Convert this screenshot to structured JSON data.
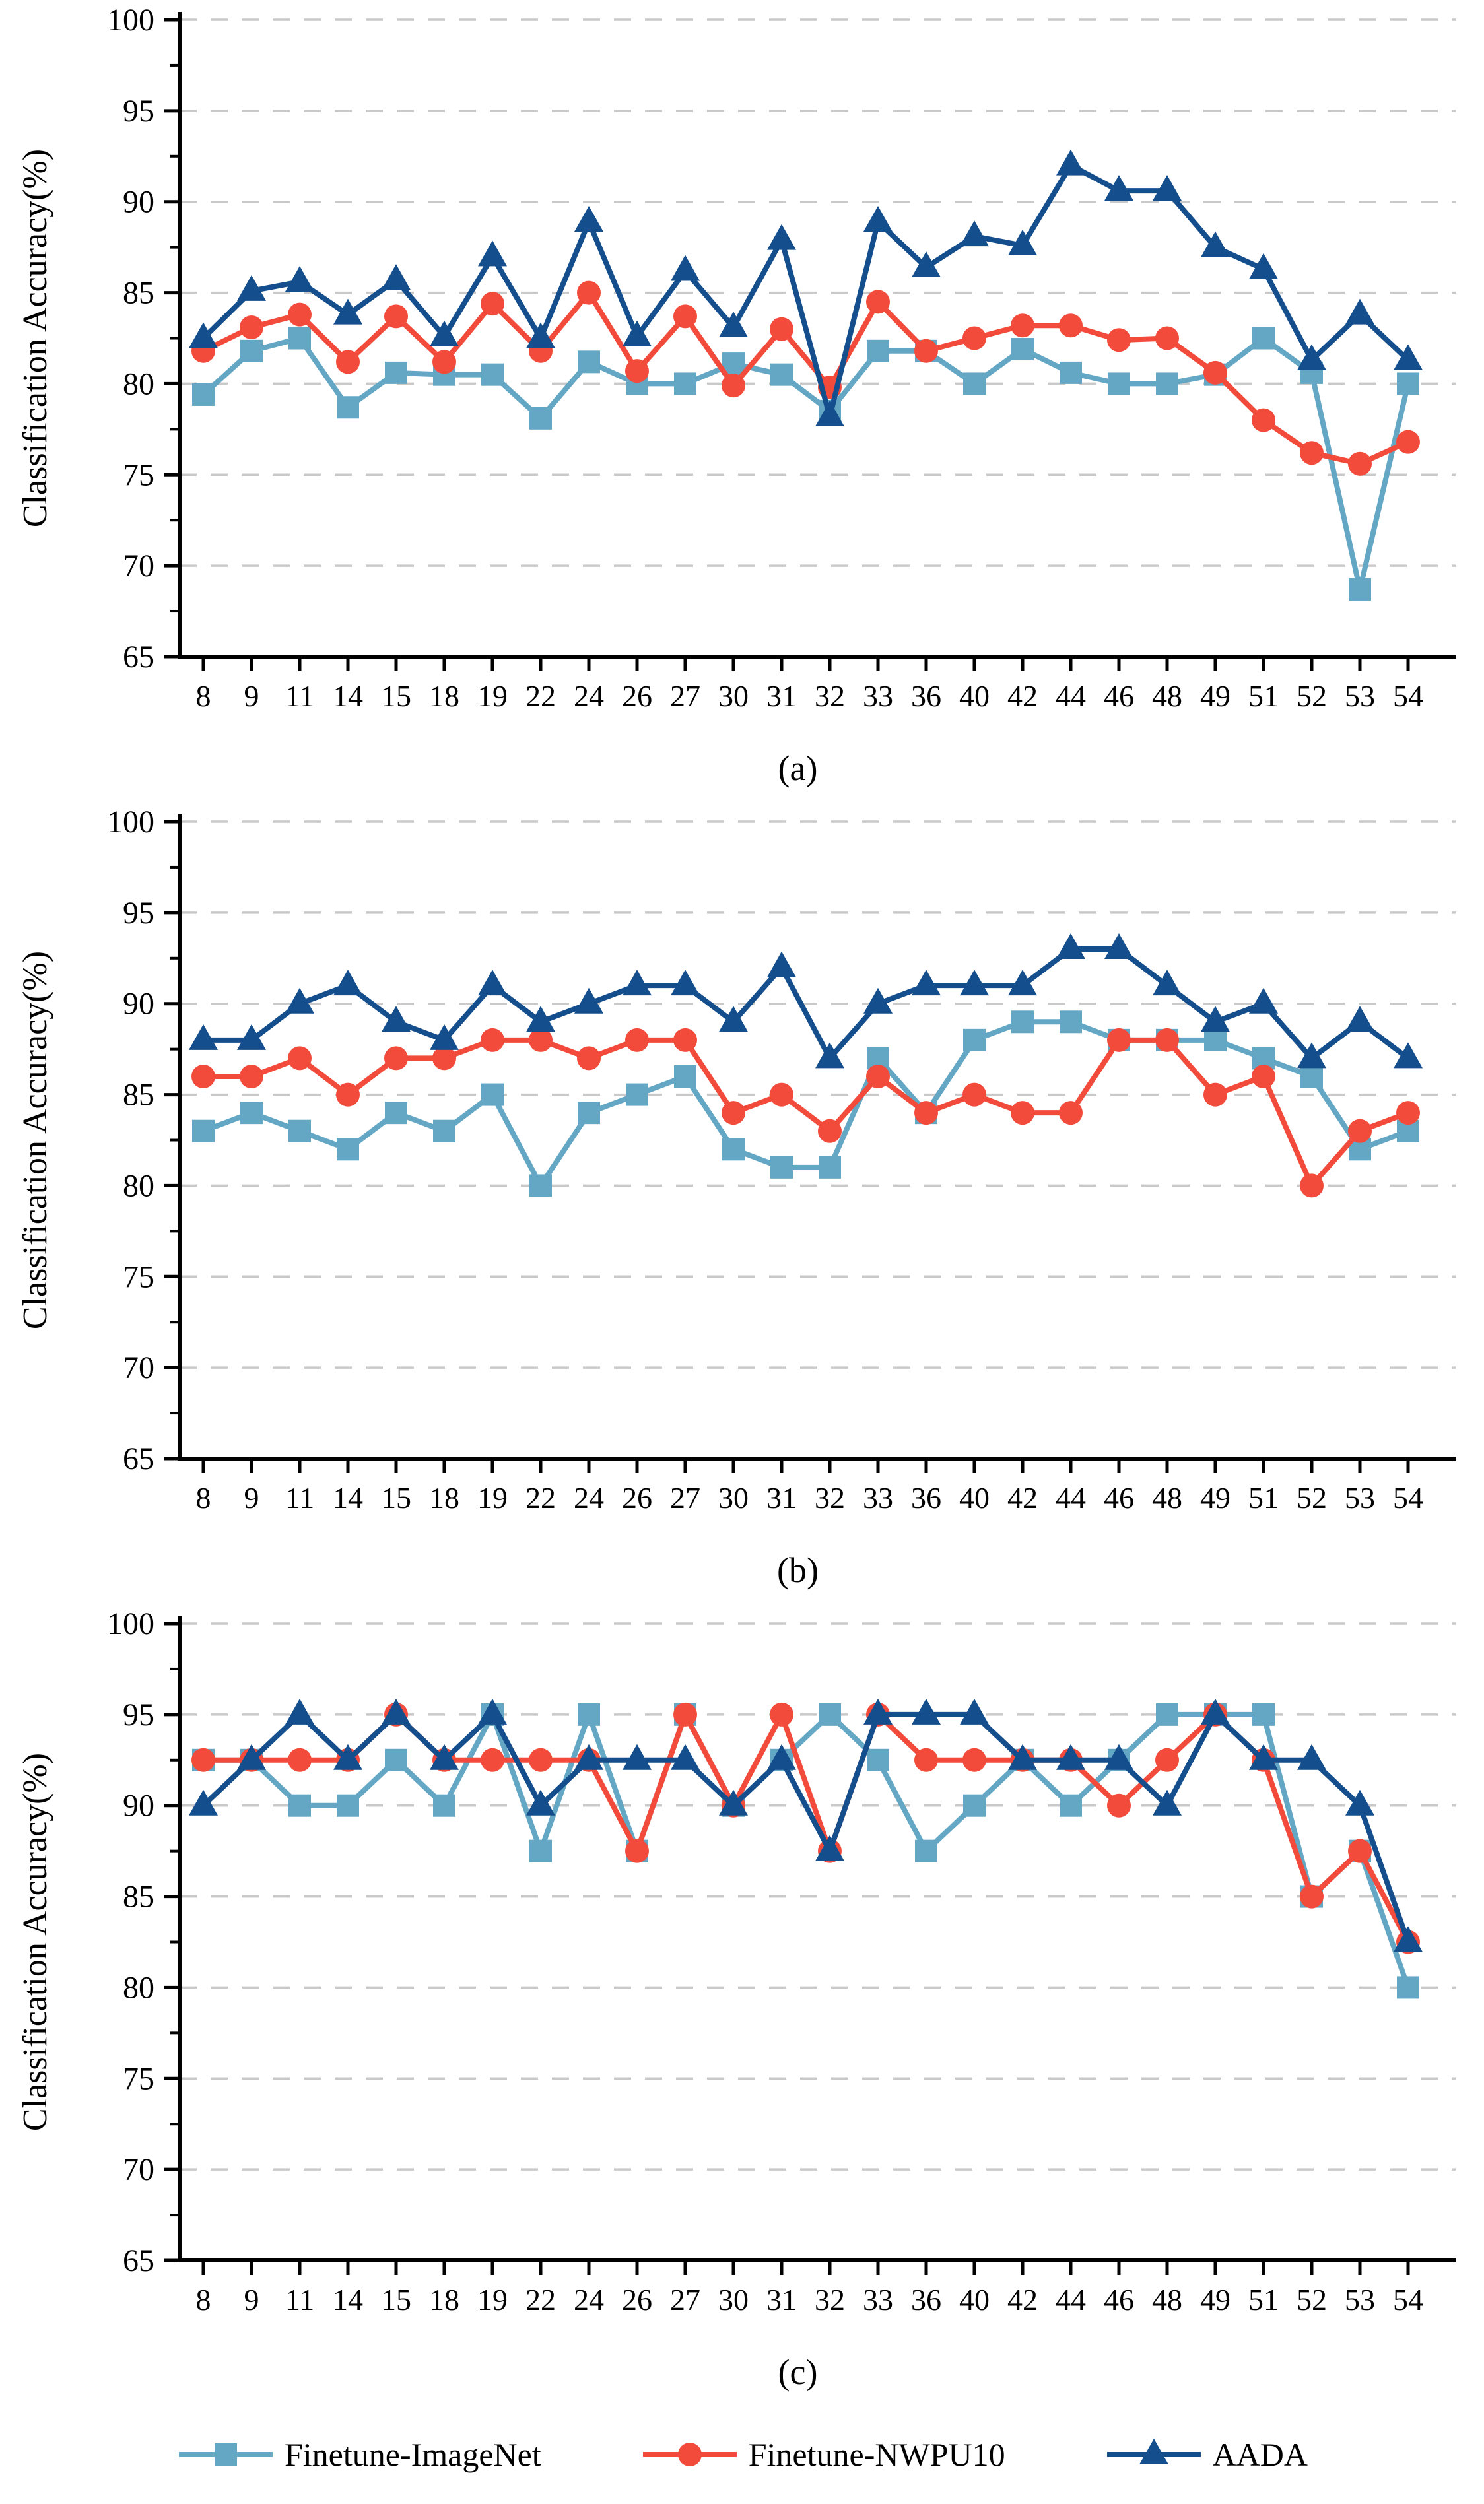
{
  "figure": {
    "ylabel": "Classification Accuracy(%)",
    "background": "#ffffff",
    "grid_color": "#c9c9c9",
    "axis_color": "#000000",
    "legend": [
      {
        "name": "Finetune-ImageNet",
        "color": "#64a7c5",
        "marker": "square"
      },
      {
        "name": "Finetune-NWPU10",
        "color": "#f34b3b",
        "marker": "circle"
      },
      {
        "name": "AADA",
        "color": "#144e8c",
        "marker": "triangle"
      }
    ]
  },
  "chart_data": [
    {
      "type": "line",
      "caption": "(a)",
      "title": "",
      "xlabel": "",
      "ylabel": "Classification Accuracy(%)",
      "ylim": [
        65,
        100
      ],
      "yticks": [
        65,
        70,
        75,
        80,
        85,
        90,
        95,
        100
      ],
      "grid": "horizontal-dashed",
      "legend_position": "figure-bottom",
      "categories": [
        "8",
        "9",
        "11",
        "14",
        "15",
        "18",
        "19",
        "22",
        "24",
        "26",
        "27",
        "30",
        "31",
        "32",
        "33",
        "36",
        "40",
        "42",
        "44",
        "46",
        "48",
        "49",
        "51",
        "52",
        "53",
        "54"
      ],
      "series": [
        {
          "name": "Finetune-ImageNet",
          "marker": "square",
          "color": "#64a7c5",
          "values": [
            79.4,
            81.8,
            82.5,
            78.7,
            80.6,
            80.5,
            80.5,
            78.1,
            81.2,
            80.0,
            80.0,
            81.1,
            80.5,
            78.5,
            81.8,
            81.8,
            80.0,
            81.9,
            80.6,
            80.0,
            80.0,
            80.5,
            82.5,
            80.6,
            68.7,
            80.0
          ]
        },
        {
          "name": "Finetune-NWPU10",
          "marker": "circle",
          "color": "#f34b3b",
          "values": [
            81.8,
            83.1,
            83.8,
            81.2,
            83.7,
            81.2,
            84.4,
            81.8,
            85.0,
            80.7,
            83.7,
            79.9,
            83.0,
            79.8,
            84.5,
            81.8,
            82.5,
            83.2,
            83.2,
            82.4,
            82.5,
            80.6,
            78.0,
            76.2,
            75.6,
            76.8
          ]
        },
        {
          "name": "AADA",
          "marker": "triangle",
          "color": "#144e8c",
          "values": [
            82.5,
            85.1,
            85.6,
            83.8,
            85.7,
            82.6,
            87.0,
            82.5,
            88.9,
            82.6,
            86.2,
            83.1,
            87.9,
            78.2,
            88.9,
            86.4,
            88.1,
            87.6,
            92.0,
            90.6,
            90.6,
            87.5,
            86.3,
            81.3,
            83.8,
            81.3
          ]
        }
      ]
    },
    {
      "type": "line",
      "caption": "(b)",
      "title": "",
      "xlabel": "",
      "ylabel": "Classification Accuracy(%)",
      "ylim": [
        65,
        100
      ],
      "yticks": [
        65,
        70,
        75,
        80,
        85,
        90,
        95,
        100
      ],
      "grid": "horizontal-dashed",
      "legend_position": "figure-bottom",
      "categories": [
        "8",
        "9",
        "11",
        "14",
        "15",
        "18",
        "19",
        "22",
        "24",
        "26",
        "27",
        "30",
        "31",
        "32",
        "33",
        "36",
        "40",
        "42",
        "44",
        "46",
        "48",
        "49",
        "51",
        "52",
        "53",
        "54"
      ],
      "series": [
        {
          "name": "Finetune-ImageNet",
          "marker": "square",
          "color": "#64a7c5",
          "values": [
            83,
            84,
            83,
            82,
            84,
            83,
            85,
            80,
            84,
            85,
            86,
            82,
            81,
            81,
            87,
            84,
            88,
            89,
            89,
            88,
            88,
            88,
            87,
            86,
            82,
            83
          ]
        },
        {
          "name": "Finetune-NWPU10",
          "marker": "circle",
          "color": "#f34b3b",
          "values": [
            86,
            86,
            87,
            85,
            87,
            87,
            88,
            88,
            87,
            88,
            88,
            84,
            85,
            83,
            86,
            84,
            85,
            84,
            84,
            88,
            88,
            85,
            86,
            80,
            83,
            84
          ]
        },
        {
          "name": "AADA",
          "marker": "triangle",
          "color": "#144e8c",
          "values": [
            88,
            88,
            90,
            91,
            89,
            88,
            91,
            89,
            90,
            91,
            91,
            89,
            92,
            87,
            90,
            91,
            91,
            91,
            93,
            93,
            91,
            89,
            90,
            87,
            89,
            87
          ]
        }
      ]
    },
    {
      "type": "line",
      "caption": "(c)",
      "title": "",
      "xlabel": "",
      "ylabel": "Classification Accuracy(%)",
      "ylim": [
        65,
        100
      ],
      "yticks": [
        65,
        70,
        75,
        80,
        85,
        90,
        95,
        100
      ],
      "grid": "horizontal-dashed",
      "legend_position": "figure-bottom",
      "categories": [
        "8",
        "9",
        "11",
        "14",
        "15",
        "18",
        "19",
        "22",
        "24",
        "26",
        "27",
        "30",
        "31",
        "32",
        "33",
        "36",
        "40",
        "42",
        "44",
        "46",
        "48",
        "49",
        "51",
        "52",
        "53",
        "54"
      ],
      "series": [
        {
          "name": "Finetune-ImageNet",
          "marker": "square",
          "color": "#64a7c5",
          "values": [
            92.5,
            92.5,
            90,
            90,
            92.5,
            90,
            95,
            87.5,
            95,
            87.5,
            95,
            90,
            92.5,
            95,
            92.5,
            87.5,
            90,
            92.5,
            90,
            92.5,
            95,
            95,
            95,
            85,
            87.5,
            80
          ]
        },
        {
          "name": "Finetune-NWPU10",
          "marker": "circle",
          "color": "#f34b3b",
          "values": [
            92.5,
            92.5,
            92.5,
            92.5,
            95,
            92.5,
            92.5,
            92.5,
            92.5,
            87.5,
            95,
            90,
            95,
            87.5,
            95,
            92.5,
            92.5,
            92.5,
            92.5,
            90,
            92.5,
            95,
            92.5,
            85,
            87.5,
            82.5
          ]
        },
        {
          "name": "AADA",
          "marker": "triangle",
          "color": "#144e8c",
          "values": [
            90,
            92.5,
            95,
            92.5,
            95,
            92.5,
            95,
            90,
            92.5,
            92.5,
            92.5,
            90,
            92.5,
            87.5,
            95,
            95,
            95,
            92.5,
            92.5,
            92.5,
            90,
            95,
            92.5,
            92.5,
            90,
            82.5
          ]
        }
      ]
    }
  ]
}
